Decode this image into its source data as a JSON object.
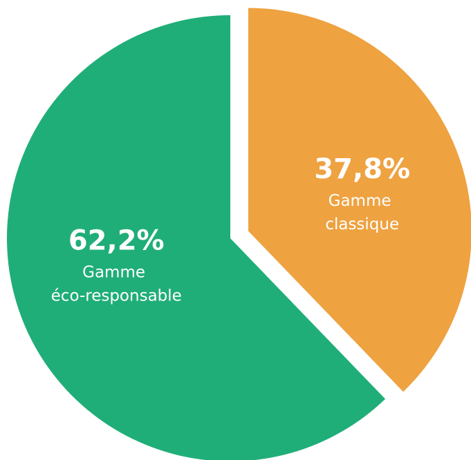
{
  "chart_data": {
    "type": "pie",
    "categories": [
      "Gamme classique",
      "Gamme éco-responsable"
    ],
    "values": [
      37.8,
      62.2
    ],
    "value_labels": [
      "37,8%",
      "62,2%"
    ],
    "colors": [
      "#eea240",
      "#20ae78"
    ]
  }
}
